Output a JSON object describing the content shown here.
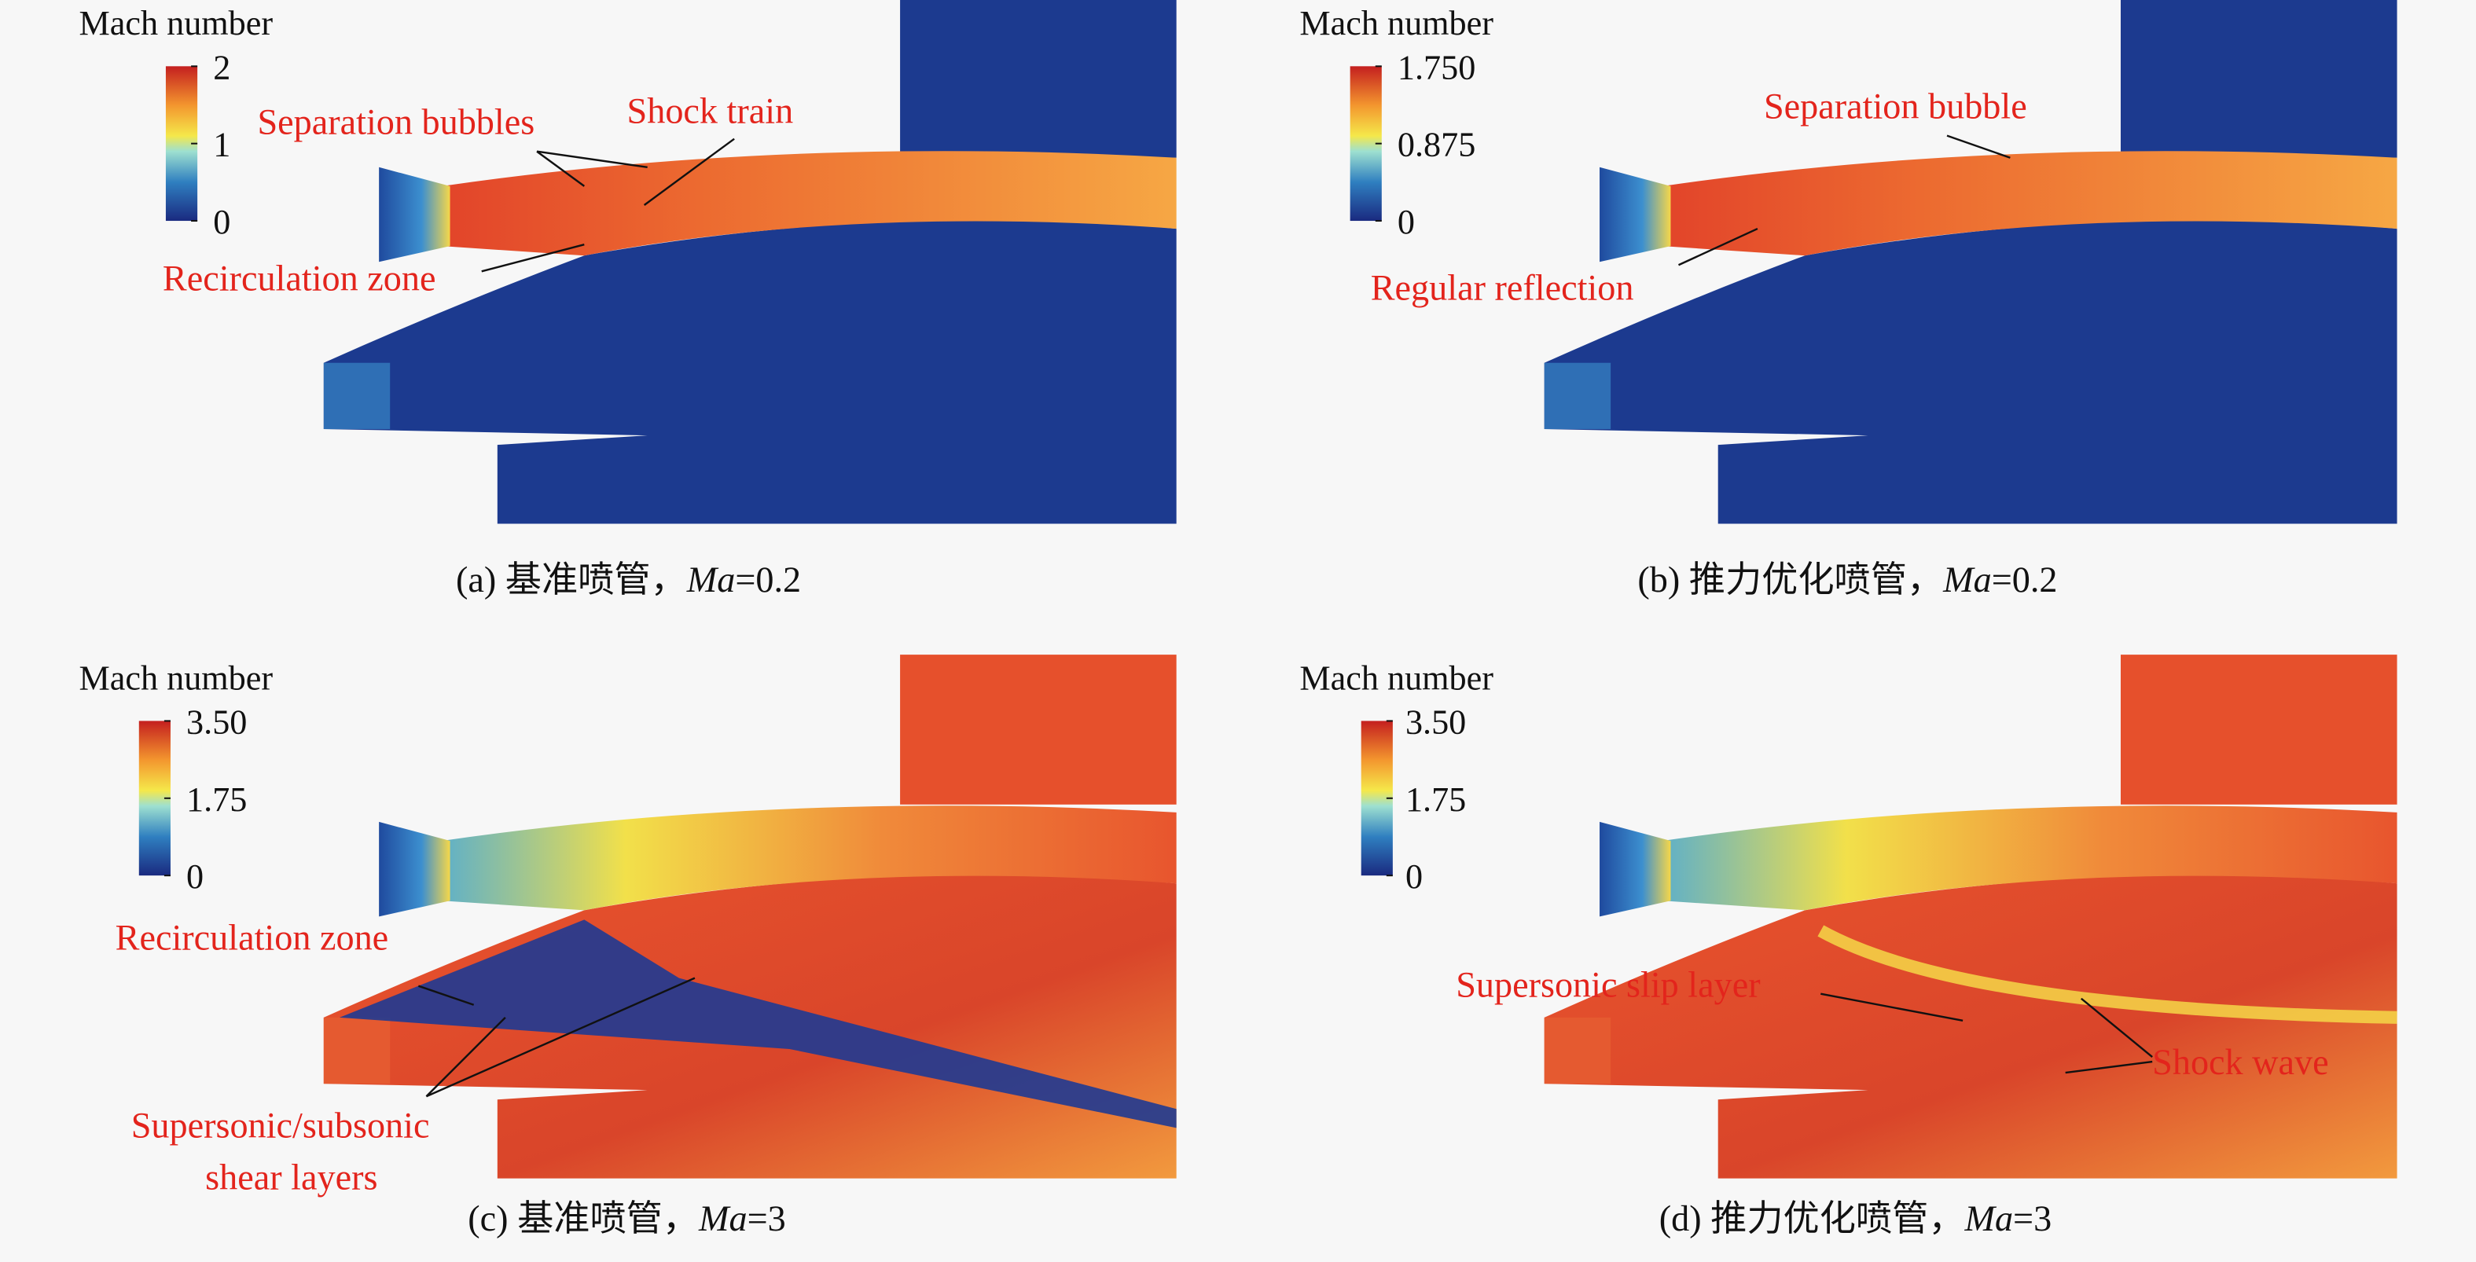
{
  "panels": [
    {
      "caption": {
        "prefix": "(a) 基准喷管，",
        "italic": "Ma",
        "suffix": "=0.2"
      },
      "colorbar": {
        "title": "Mach number",
        "ticks": [
          "2",
          "1",
          "0"
        ]
      },
      "annotations": [
        "Separation bubbles",
        "Shock train",
        "Recirculation zone"
      ]
    },
    {
      "caption": {
        "prefix": "(b) 推力优化喷管，",
        "italic": "Ma",
        "suffix": "=0.2"
      },
      "colorbar": {
        "title": "Mach number",
        "ticks": [
          "1.750",
          "0.875",
          "0"
        ]
      },
      "annotations": [
        "Separation bubble",
        "Regular reflection"
      ]
    },
    {
      "caption": {
        "prefix": "(c) 基准喷管，",
        "italic": "Ma",
        "suffix": "=3"
      },
      "colorbar": {
        "title": "Mach number",
        "ticks": [
          "3.50",
          "1.75",
          "0"
        ]
      },
      "annotations": [
        "Recirculation zone",
        "Supersonic/subsonic",
        "shear layers"
      ]
    },
    {
      "caption": {
        "prefix": "(d) 推力优化喷管，",
        "italic": "Ma",
        "suffix": "=3"
      },
      "colorbar": {
        "title": "Mach number",
        "ticks": [
          "3.50",
          "1.75",
          "0"
        ]
      },
      "annotations": [
        "Supersonic slip layer",
        "Shock wave"
      ]
    }
  ]
}
